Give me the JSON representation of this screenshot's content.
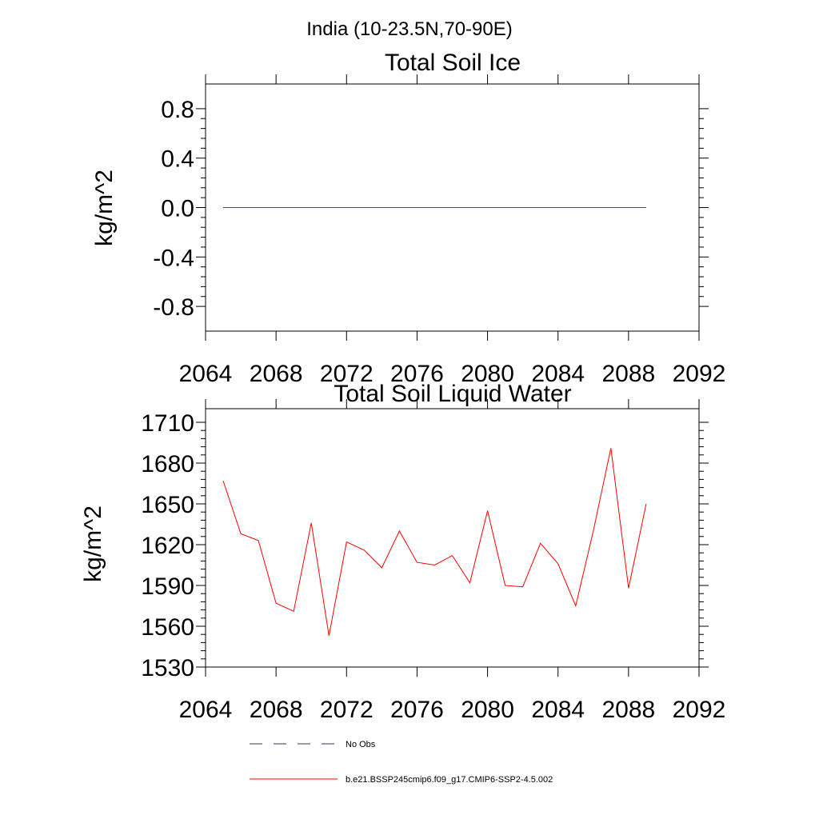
{
  "figure": {
    "suptitle": "India (10-23.5N,70-90E)"
  },
  "colors": {
    "series": "#ff0000",
    "obs": "#333366",
    "axis": "#000000"
  },
  "chart_data": [
    {
      "type": "line",
      "title": "Total Soil Ice",
      "xlabel": "",
      "ylabel": "kg/m^2",
      "xlim": [
        2064,
        2092
      ],
      "ylim": [
        -1.0,
        1.0
      ],
      "xticks": [
        2064,
        2068,
        2072,
        2076,
        2080,
        2084,
        2088,
        2092
      ],
      "yticks": [
        0.8,
        0.4,
        0.0,
        -0.4,
        -0.8
      ],
      "ytick_labels": [
        "0.8",
        "0.4",
        "0.0",
        "-0.4",
        "-0.8"
      ],
      "grid": false,
      "series": [
        {
          "name": "b.e21.BSSP245cmip6.f09_g17.CMIP6-SSP2-4.5.002",
          "x": [
            2065,
            2066,
            2067,
            2068,
            2069,
            2070,
            2071,
            2072,
            2073,
            2074,
            2075,
            2076,
            2077,
            2078,
            2079,
            2080,
            2081,
            2082,
            2083,
            2084,
            2085,
            2086,
            2087,
            2088,
            2089
          ],
          "y": [
            0,
            0,
            0,
            0,
            0,
            0,
            0,
            0,
            0,
            0,
            0,
            0,
            0,
            0,
            0,
            0,
            0,
            0,
            0,
            0,
            0,
            0,
            0,
            0,
            0
          ]
        }
      ]
    },
    {
      "type": "line",
      "title": "Total Soil Liquid Water",
      "xlabel": "",
      "ylabel": "kg/m^2",
      "xlim": [
        2064,
        2092
      ],
      "ylim": [
        1530,
        1720
      ],
      "xticks": [
        2064,
        2068,
        2072,
        2076,
        2080,
        2084,
        2088,
        2092
      ],
      "yticks": [
        1710,
        1680,
        1650,
        1620,
        1590,
        1560,
        1530
      ],
      "ytick_labels": [
        "1710",
        "1680",
        "1650",
        "1620",
        "1590",
        "1560",
        "1530"
      ],
      "grid": false,
      "series": [
        {
          "name": "b.e21.BSSP245cmip6.f09_g17.CMIP6-SSP2-4.5.002",
          "x": [
            2065,
            2066,
            2067,
            2068,
            2069,
            2070,
            2071,
            2072,
            2073,
            2074,
            2075,
            2076,
            2077,
            2078,
            2079,
            2080,
            2081,
            2082,
            2083,
            2084,
            2085,
            2086,
            2087,
            2088,
            2089
          ],
          "y": [
            1667,
            1628,
            1623,
            1577,
            1571,
            1636,
            1553,
            1622,
            1616,
            1603,
            1630,
            1607,
            1605,
            1612,
            1592,
            1645,
            1590,
            1589,
            1621,
            1606,
            1575,
            1630,
            1691,
            1588,
            1650
          ]
        }
      ]
    }
  ],
  "legend": {
    "placement": "bottom",
    "items": [
      {
        "label": "No Obs",
        "style": "dashed",
        "color": "#333366"
      },
      {
        "label": "b.e21.BSSP245cmip6.f09_g17.CMIP6-SSP2-4.5.002",
        "style": "solid",
        "color": "#ff0000"
      }
    ]
  }
}
